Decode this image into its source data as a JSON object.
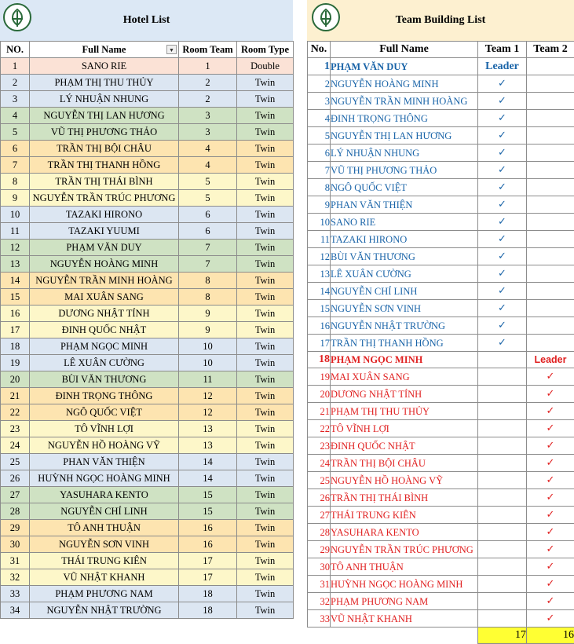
{
  "colors": {
    "salmon": "#fbe2d6",
    "blue": "#dce6f2",
    "green": "#cfe2c3",
    "orange": "#fde4b0",
    "yellow": "#fdf7c9",
    "header_blue": "#dce8f5",
    "header_cream": "#fdf0d0",
    "team1": "#1a64a8",
    "team2": "#e02020",
    "total_bg": "#ffff33"
  },
  "logo_icon": "leaf-emblem-icon",
  "hotel": {
    "title": "Hotel List",
    "headers": [
      "NO.",
      "Full Name",
      "Room Team",
      "Room Type"
    ],
    "filter_icon": "▼",
    "rows": [
      {
        "no": "1",
        "name": "SANO RIE",
        "room": "1",
        "type": "Double",
        "color": "salmon"
      },
      {
        "no": "2",
        "name": "PHẠM THỊ THU THỦY",
        "room": "2",
        "type": "Twin",
        "color": "blue"
      },
      {
        "no": "3",
        "name": "LÝ NHUẬN NHUNG",
        "room": "2",
        "type": "Twin",
        "color": "blue"
      },
      {
        "no": "4",
        "name": "NGUYỄN THỊ LAN HƯƠNG",
        "room": "3",
        "type": "Twin",
        "color": "green"
      },
      {
        "no": "5",
        "name": "VŨ THỊ PHƯƠNG THẢO",
        "room": "3",
        "type": "Twin",
        "color": "green"
      },
      {
        "no": "6",
        "name": "TRẦN THỊ BỘI CHÂU",
        "room": "4",
        "type": "Twin",
        "color": "orange"
      },
      {
        "no": "7",
        "name": "TRẦN THỊ THANH HỒNG",
        "room": "4",
        "type": "Twin",
        "color": "orange"
      },
      {
        "no": "8",
        "name": "TRẦN THỊ THÁI BÌNH",
        "room": "5",
        "type": "Twin",
        "color": "yellow"
      },
      {
        "no": "9",
        "name": "NGUYỄN TRẦN TRÚC PHƯƠNG",
        "room": "5",
        "type": "Twin",
        "color": "yellow"
      },
      {
        "no": "10",
        "name": "TAZAKI HIRONO",
        "room": "6",
        "type": "Twin",
        "color": "blue"
      },
      {
        "no": "11",
        "name": "TAZAKI YUUMI",
        "room": "6",
        "type": "Twin",
        "color": "blue"
      },
      {
        "no": "12",
        "name": "PHẠM VĂN DUY",
        "room": "7",
        "type": "Twin",
        "color": "green"
      },
      {
        "no": "13",
        "name": "NGUYỄN HOÀNG MINH",
        "room": "7",
        "type": "Twin",
        "color": "green"
      },
      {
        "no": "14",
        "name": "NGUYỄN TRẦN MINH HOÀNG",
        "room": "8",
        "type": "Twin",
        "color": "orange"
      },
      {
        "no": "15",
        "name": "MAI XUÂN SANG",
        "room": "8",
        "type": "Twin",
        "color": "orange"
      },
      {
        "no": "16",
        "name": "DƯƠNG NHẬT TÍNH",
        "room": "9",
        "type": "Twin",
        "color": "yellow"
      },
      {
        "no": "17",
        "name": "ĐINH QUỐC NHẬT",
        "room": "9",
        "type": "Twin",
        "color": "yellow"
      },
      {
        "no": "18",
        "name": "PHẠM NGỌC MINH",
        "room": "10",
        "type": "Twin",
        "color": "blue"
      },
      {
        "no": "19",
        "name": "LÊ XUÂN CƯỜNG",
        "room": "10",
        "type": "Twin",
        "color": "blue"
      },
      {
        "no": "20",
        "name": "BÙI VĂN THƯƠNG",
        "room": "11",
        "type": "Twin",
        "color": "green"
      },
      {
        "no": "21",
        "name": "ĐINH TRỌNG THÔNG",
        "room": "12",
        "type": "Twin",
        "color": "orange"
      },
      {
        "no": "22",
        "name": "NGÔ QUỐC VIỆT",
        "room": "12",
        "type": "Twin",
        "color": "orange"
      },
      {
        "no": "23",
        "name": "TÔ VĨNH LỢI",
        "room": "13",
        "type": "Twin",
        "color": "yellow"
      },
      {
        "no": "24",
        "name": "NGUYỄN HỒ HOÀNG VỸ",
        "room": "13",
        "type": "Twin",
        "color": "yellow"
      },
      {
        "no": "25",
        "name": "PHAN VĂN THIỆN",
        "room": "14",
        "type": "Twin",
        "color": "blue"
      },
      {
        "no": "26",
        "name": "HUỲNH NGỌC HOÀNG MINH",
        "room": "14",
        "type": "Twin",
        "color": "blue"
      },
      {
        "no": "27",
        "name": "YASUHARA KENTO",
        "room": "15",
        "type": "Twin",
        "color": "green"
      },
      {
        "no": "28",
        "name": "NGUYỄN CHÍ LINH",
        "room": "15",
        "type": "Twin",
        "color": "green"
      },
      {
        "no": "29",
        "name": "TÔ ANH THUẬN",
        "room": "16",
        "type": "Twin",
        "color": "orange"
      },
      {
        "no": "30",
        "name": "NGUYỄN SƠN VINH",
        "room": "16",
        "type": "Twin",
        "color": "orange"
      },
      {
        "no": "31",
        "name": "THÁI TRUNG KIÊN",
        "room": "17",
        "type": "Twin",
        "color": "yellow"
      },
      {
        "no": "32",
        "name": "VŨ NHẬT KHANH",
        "room": "17",
        "type": "Twin",
        "color": "yellow"
      },
      {
        "no": "33",
        "name": "PHẠM PHƯƠNG NAM",
        "room": "18",
        "type": "Twin",
        "color": "blue"
      },
      {
        "no": "34",
        "name": "NGUYỄN NHẬT TRƯỜNG",
        "room": "18",
        "type": "Twin",
        "color": "blue"
      }
    ]
  },
  "team": {
    "title": "Team Building List",
    "headers": [
      "No.",
      "Full Name",
      "Team 1",
      "Team 2"
    ],
    "check_icon": "✓",
    "leader_label": "Leader",
    "rows": [
      {
        "no": "1",
        "name": "PHẠM VĂN DUY",
        "team": 1,
        "leader": true
      },
      {
        "no": "2",
        "name": "NGUYỄN HOÀNG MINH",
        "team": 1
      },
      {
        "no": "3",
        "name": "NGUYỄN TRẦN MINH HOÀNG",
        "team": 1
      },
      {
        "no": "4",
        "name": "ĐINH TRỌNG THÔNG",
        "team": 1
      },
      {
        "no": "5",
        "name": "NGUYỄN THỊ LAN HƯƠNG",
        "team": 1
      },
      {
        "no": "6",
        "name": "LÝ NHUẬN NHUNG",
        "team": 1
      },
      {
        "no": "7",
        "name": "VŨ THỊ PHƯƠNG THẢO",
        "team": 1
      },
      {
        "no": "8",
        "name": "NGÔ QUỐC VIỆT",
        "team": 1
      },
      {
        "no": "9",
        "name": "PHAN VĂN THIỆN",
        "team": 1
      },
      {
        "no": "10",
        "name": "SANO RIE",
        "team": 1
      },
      {
        "no": "11",
        "name": "TAZAKI HIRONO",
        "team": 1
      },
      {
        "no": "12",
        "name": "BÙI VĂN THƯƠNG",
        "team": 1
      },
      {
        "no": "13",
        "name": "LÊ XUÂN CƯỜNG",
        "team": 1
      },
      {
        "no": "14",
        "name": "NGUYỄN CHÍ LINH",
        "team": 1
      },
      {
        "no": "15",
        "name": "NGUYỄN SƠN VINH",
        "team": 1
      },
      {
        "no": "16",
        "name": "NGUYỄN NHẬT TRƯỜNG",
        "team": 1
      },
      {
        "no": "17",
        "name": "TRẦN THỊ THANH HỒNG",
        "team": 1
      },
      {
        "no": "18",
        "name": "PHẠM NGỌC MINH",
        "team": 2,
        "leader": true
      },
      {
        "no": "19",
        "name": "MAI XUÂN SANG",
        "team": 2
      },
      {
        "no": "20",
        "name": "DƯƠNG NHẬT TÍNH",
        "team": 2
      },
      {
        "no": "21",
        "name": "PHẠM THỊ THU THỦY",
        "team": 2
      },
      {
        "no": "22",
        "name": "TÔ VĨNH LỢI",
        "team": 2
      },
      {
        "no": "23",
        "name": "ĐINH QUỐC NHẬT",
        "team": 2
      },
      {
        "no": "24",
        "name": "TRẦN THỊ BỘI CHÂU",
        "team": 2
      },
      {
        "no": "25",
        "name": "NGUYỄN HỒ HOÀNG VỸ",
        "team": 2
      },
      {
        "no": "26",
        "name": "TRẦN THỊ THÁI BÌNH",
        "team": 2
      },
      {
        "no": "27",
        "name": "THÁI TRUNG KIÊN",
        "team": 2
      },
      {
        "no": "28",
        "name": "YASUHARA KENTO",
        "team": 2
      },
      {
        "no": "29",
        "name": "NGUYỄN TRẦN TRÚC PHƯƠNG",
        "team": 2
      },
      {
        "no": "30",
        "name": "TÔ ANH THUẬN",
        "team": 2
      },
      {
        "no": "31",
        "name": "HUỲNH NGỌC HOÀNG MINH",
        "team": 2
      },
      {
        "no": "32",
        "name": "PHẠM PHƯƠNG NAM",
        "team": 2
      },
      {
        "no": "33",
        "name": "VŨ NHẬT KHANH",
        "team": 2
      }
    ],
    "totals": {
      "team1": "17",
      "team2": "16"
    }
  }
}
